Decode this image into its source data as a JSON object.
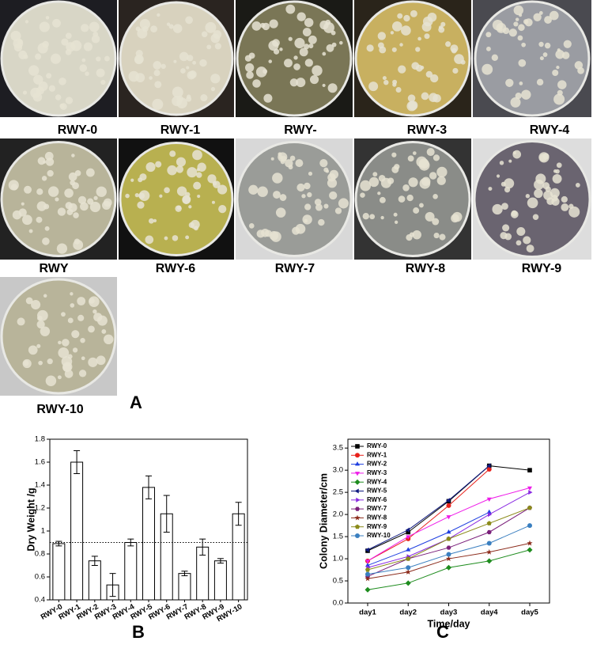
{
  "photos": [
    {
      "label": "RWY-0"
    },
    {
      "label": "RWY-1"
    },
    {
      "label": "RWY-"
    },
    {
      "label": "RWY-3"
    },
    {
      "label": "RWY-4"
    },
    {
      "label": "RWY"
    },
    {
      "label": "RWY-6"
    },
    {
      "label": "RWY-7"
    },
    {
      "label": "RWY-8"
    },
    {
      "label": "RWY-9"
    },
    {
      "label": "RWY-10"
    }
  ],
  "panel_labels": [
    "A",
    "B",
    "C"
  ],
  "chart_data": [
    {
      "type": "bar",
      "y_label": "Dry Weight /g",
      "categories": [
        "RWY-0",
        "RWY-1",
        "RWY-2",
        "RWY-3",
        "RWY-4",
        "RWY-5",
        "RWY-6",
        "RWY-7",
        "RWY-8",
        "RWY-9",
        "RWY-10"
      ],
      "values": [
        0.89,
        1.6,
        0.74,
        0.53,
        0.9,
        1.38,
        1.15,
        0.63,
        0.86,
        0.74,
        1.15
      ],
      "errors": [
        0.02,
        0.1,
        0.04,
        0.1,
        0.03,
        0.1,
        0.16,
        0.02,
        0.07,
        0.02,
        0.1
      ],
      "color": "#ffffff",
      "reference_line": 0.9,
      "ylim": [
        0.4,
        1.8
      ],
      "yticks": [
        0.4,
        0.6,
        0.8,
        1.0,
        1.2,
        1.4,
        1.6,
        1.8
      ]
    },
    {
      "type": "line",
      "x_label": "Time/day",
      "y_label": "Colony Diameter/cm",
      "categories": [
        "day1",
        "day2",
        "day3",
        "day4",
        "day5"
      ],
      "ylim": [
        0,
        3.7
      ],
      "yticks": [
        {
          "value": 0,
          "label": "0.0"
        },
        0.5,
        {
          "value": 1,
          "label": "1.0"
        },
        1.5,
        {
          "value": 2,
          "label": "2.0"
        },
        2.5,
        {
          "value": 3,
          "label": "3.0"
        },
        3.5
      ],
      "legend": "upper left",
      "series": [
        {
          "name": "RWY-0",
          "color": "#000000",
          "marker": "square",
          "values": [
            1.18,
            1.6,
            2.3,
            3.1,
            3.0
          ]
        },
        {
          "name": "RWY-1",
          "color": "#e8211b",
          "marker": "circle",
          "values": [
            0.95,
            1.45,
            2.2,
            3.02,
            null
          ]
        },
        {
          "name": "RWY-2",
          "color": "#1f3fe0",
          "marker": "triangle-up",
          "values": [
            0.85,
            1.2,
            1.6,
            2.05,
            null
          ]
        },
        {
          "name": "RWY-3",
          "color": "#ee1be8",
          "marker": "triangle-down",
          "values": [
            0.95,
            1.5,
            1.95,
            2.35,
            2.6
          ]
        },
        {
          "name": "RWY-4",
          "color": "#1e8c1e",
          "marker": "diamond",
          "values": [
            0.3,
            0.45,
            0.8,
            0.95,
            1.2
          ]
        },
        {
          "name": "RWY-5",
          "color": "#101a80",
          "marker": "triangle-left",
          "values": [
            1.2,
            1.65,
            2.32,
            3.1,
            null
          ]
        },
        {
          "name": "RWY-6",
          "color": "#8a2be2",
          "marker": "triangle-right",
          "values": [
            0.8,
            1.05,
            1.45,
            2.0,
            2.5
          ]
        },
        {
          "name": "RWY-7",
          "color": "#7a1f7a",
          "marker": "hexagon",
          "values": [
            0.6,
            1.0,
            1.25,
            1.6,
            2.15
          ]
        },
        {
          "name": "RWY-8",
          "color": "#8b2a1a",
          "marker": "star",
          "values": [
            0.55,
            0.7,
            1.0,
            1.15,
            1.35
          ]
        },
        {
          "name": "RWY-9",
          "color": "#8b8b1a",
          "marker": "pentagon",
          "values": [
            0.75,
            1.0,
            1.45,
            1.8,
            2.15
          ]
        },
        {
          "name": "RWY-10",
          "color": "#3a7fc0",
          "marker": "circle",
          "values": [
            0.65,
            0.8,
            1.1,
            1.35,
            1.75
          ]
        }
      ]
    }
  ]
}
